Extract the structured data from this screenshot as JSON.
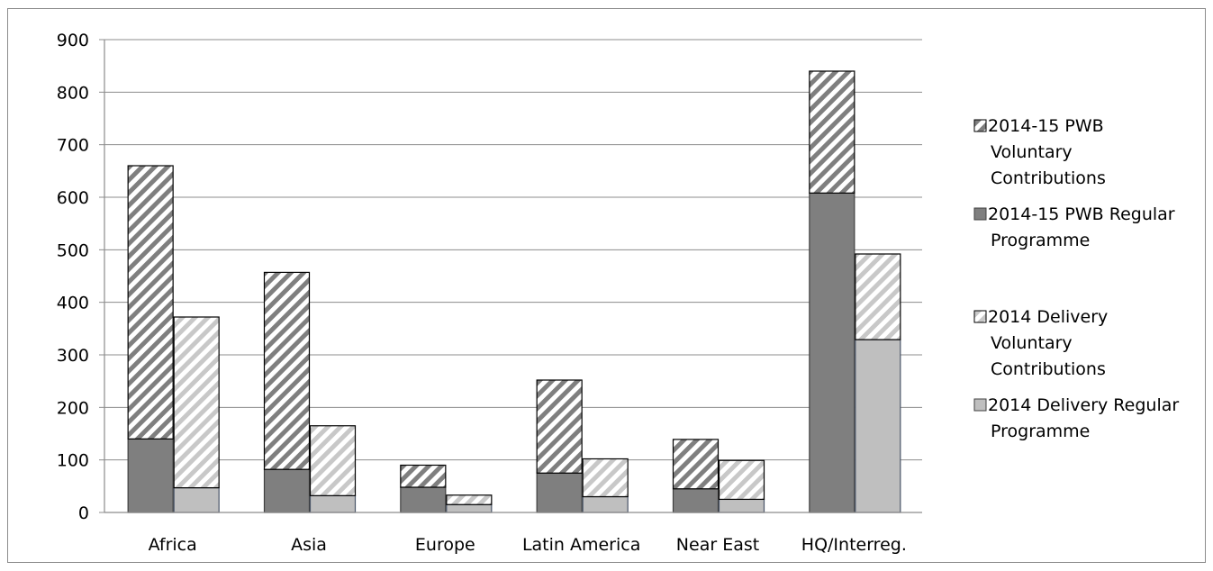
{
  "chart_data": {
    "type": "bar",
    "stacked": true,
    "grid": true,
    "legend_position": "right",
    "categories": [
      "Africa",
      "Asia",
      "Europe",
      "Latin America",
      "Near East",
      "HQ/Interreg."
    ],
    "ylim": [
      0,
      900
    ],
    "yticks": [
      0,
      100,
      200,
      300,
      400,
      500,
      600,
      700,
      800,
      900
    ],
    "groups": [
      {
        "stack": "2014-15 PWB",
        "series": [
          {
            "name": "2014-15 PWB Regular Programme",
            "values": [
              140,
              82,
              48,
              75,
              45,
              608
            ],
            "color": "#7f7f7f",
            "pattern": "solid"
          },
          {
            "name": "2014-15 PWB Voluntary Contributions",
            "values": [
              520,
              375,
              42,
              177,
              94,
              232
            ],
            "color": "#7f7f7f",
            "pattern": "hatch"
          }
        ]
      },
      {
        "stack": "2014 Delivery",
        "series": [
          {
            "name": "2014 Delivery Regular Programme",
            "values": [
              47,
              32,
              15,
              30,
              25,
              329
            ],
            "color": "#bfbfbf",
            "pattern": "solid"
          },
          {
            "name": "2014 Delivery Voluntary Contributions",
            "values": [
              325,
              133,
              18,
              72,
              74,
              163
            ],
            "color": "#bfbfbf",
            "pattern": "hatch"
          }
        ]
      }
    ],
    "legend": [
      {
        "label_lines": [
          "2014-15 PWB",
          "Voluntary",
          "Contributions"
        ],
        "color": "#7f7f7f",
        "pattern": "hatch"
      },
      {
        "label_lines": [
          "2014-15 PWB Regular",
          "Programme"
        ],
        "color": "#7f7f7f",
        "pattern": "solid"
      },
      {
        "label_lines": [
          "2014 Delivery",
          "Voluntary",
          "Contributions"
        ],
        "color": "#bfbfbf",
        "pattern": "hatch"
      },
      {
        "label_lines": [
          "2014 Delivery Regular",
          "Programme"
        ],
        "color": "#bfbfbf",
        "pattern": "solid"
      }
    ]
  }
}
